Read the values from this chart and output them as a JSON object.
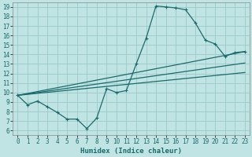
{
  "xlabel": "Humidex (Indice chaleur)",
  "bg_color": "#c0e4e4",
  "grid_color": "#a0cccc",
  "line_color": "#1a6b6b",
  "xlim": [
    -0.5,
    23.5
  ],
  "ylim": [
    5.5,
    19.5
  ],
  "xticks": [
    0,
    1,
    2,
    3,
    4,
    5,
    6,
    7,
    8,
    9,
    10,
    11,
    12,
    13,
    14,
    15,
    16,
    17,
    18,
    19,
    20,
    21,
    22,
    23
  ],
  "yticks": [
    6,
    7,
    8,
    9,
    10,
    11,
    12,
    13,
    14,
    15,
    16,
    17,
    18,
    19
  ],
  "curve_x": [
    0,
    1,
    2,
    3,
    4,
    5,
    6,
    7,
    8,
    9,
    10,
    11,
    12,
    13,
    14,
    15,
    16,
    17,
    18,
    19,
    20,
    21,
    22,
    23
  ],
  "curve_y": [
    9.7,
    8.7,
    9.1,
    8.5,
    7.9,
    7.2,
    7.2,
    6.2,
    7.3,
    10.4,
    10.0,
    10.2,
    13.0,
    15.7,
    19.1,
    19.0,
    18.9,
    18.7,
    17.3,
    15.5,
    15.1,
    13.8,
    14.2,
    14.3
  ],
  "straight_lines": [
    {
      "x0": 0,
      "y0": 9.7,
      "x1": 23,
      "y1": 14.3
    },
    {
      "x0": 0,
      "y0": 9.7,
      "x1": 23,
      "y1": 13.1
    },
    {
      "x0": 0,
      "y0": 9.7,
      "x1": 23,
      "y1": 12.1
    }
  ]
}
